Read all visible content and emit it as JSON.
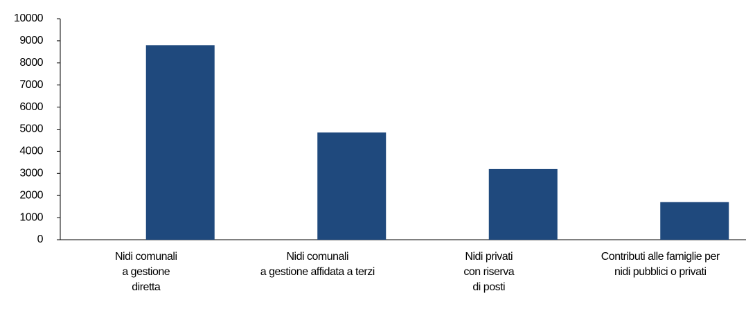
{
  "chart_data": {
    "type": "bar",
    "categories": [
      "Nidi comunali\na gestione\ndiretta",
      "Nidi comunali\na gestione affidata a terzi",
      "Nidi privati\ncon riserva\ndi posti",
      "Contributi alle famiglie per\nnidi pubblici o privati"
    ],
    "values": [
      8800,
      4850,
      3200,
      1700
    ],
    "color": "#1f497d",
    "ylim": [
      0,
      10000
    ],
    "yticks": [
      0,
      1000,
      2000,
      3000,
      4000,
      5000,
      6000,
      7000,
      8000,
      9000,
      10000
    ],
    "grid": false
  }
}
